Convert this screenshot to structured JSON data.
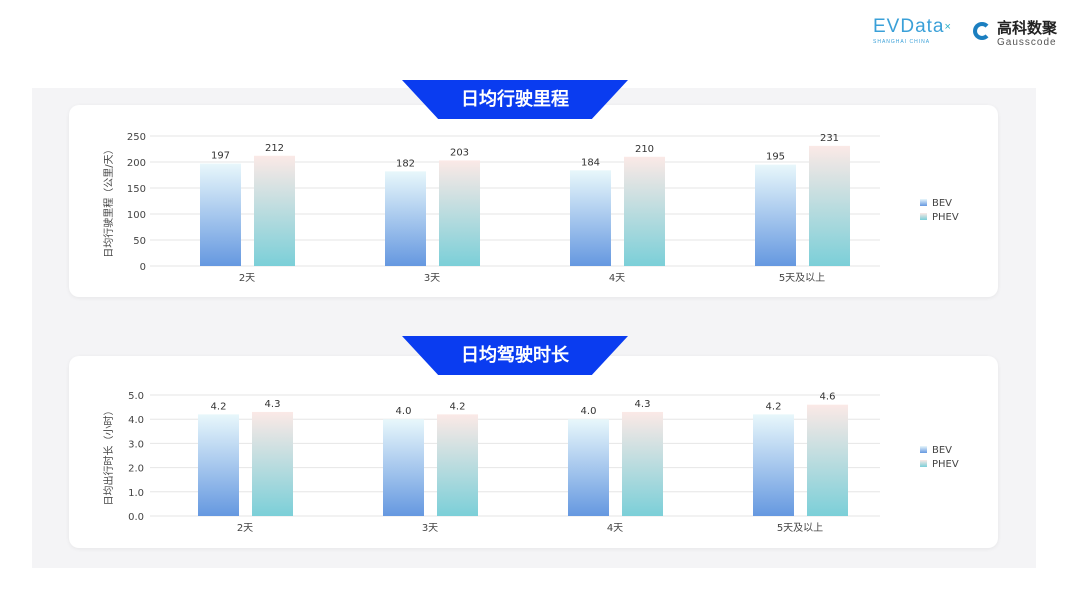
{
  "logos": {
    "evdata": "EVData",
    "evdata_sub": "SHANGHAI CHINA",
    "gauss_cn": "高科数聚",
    "gauss_en": "Gausscode"
  },
  "colors": {
    "ribbon": "#0a3cf0",
    "bev_top": "#e8f7fb",
    "bev_bottom": "#6598e0",
    "phev_top": "#fbe9e6",
    "phev_bottom": "#7bcfd8"
  },
  "chart_data": [
    {
      "type": "bar",
      "title": "日均行驶里程",
      "ylabel": "日均行驶里程（公里/天）",
      "categories": [
        "2天",
        "3天",
        "4天",
        "5天及以上"
      ],
      "series": [
        {
          "name": "BEV",
          "values": [
            197,
            182,
            184,
            195
          ]
        },
        {
          "name": "PHEV",
          "values": [
            212,
            203,
            210,
            231
          ]
        }
      ],
      "ylim": [
        0,
        250
      ],
      "yticks": [
        0,
        50,
        100,
        150,
        200,
        250
      ],
      "decimals": 0,
      "grid": true,
      "legend": "right"
    },
    {
      "type": "bar",
      "title": "日均驾驶时长",
      "ylabel": "日均出行时长（小时）",
      "categories": [
        "2天",
        "3天",
        "4天",
        "5天及以上"
      ],
      "series": [
        {
          "name": "BEV",
          "values": [
            4.2,
            4.0,
            4.0,
            4.2
          ]
        },
        {
          "name": "PHEV",
          "values": [
            4.3,
            4.2,
            4.3,
            4.6
          ]
        }
      ],
      "ylim": [
        0,
        5
      ],
      "yticks": [
        0,
        1,
        2,
        3,
        4,
        5
      ],
      "decimals": 1,
      "grid": true,
      "legend": "right"
    }
  ]
}
